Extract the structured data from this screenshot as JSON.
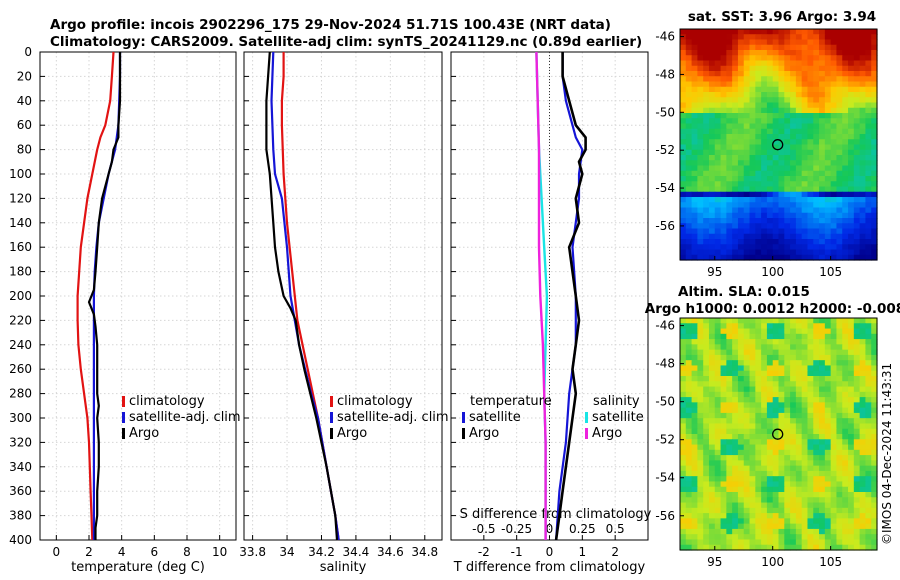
{
  "header": {
    "line1": "Argo profile: incois 2902296_175 29-Nov-2024 51.71S 100.43E (NRT data)",
    "line2": "Climatology: CARS2009. Satellite-adj clim: synTS_20241129.nc (0.89d earlier)"
  },
  "colors": {
    "climatology": "#e21313",
    "satellite": "#1515d6",
    "argo": "#000000",
    "sal_sat": "#19e5e5",
    "sal_argo": "#ee22dd"
  },
  "chart_data": [
    {
      "id": "temperature",
      "type": "line",
      "xlabel": "temperature (deg C)",
      "ylabel": "",
      "xlim": [
        -1,
        11
      ],
      "ylim": [
        400,
        0
      ],
      "xticks": [
        "0",
        "2",
        "4",
        "6",
        "8",
        "10"
      ],
      "yticks": [
        "0",
        "20",
        "40",
        "60",
        "80",
        "100",
        "120",
        "140",
        "160",
        "180",
        "200",
        "220",
        "240",
        "260",
        "280",
        "300",
        "320",
        "340",
        "360",
        "380",
        "400"
      ],
      "legend": [
        "climatology",
        "satellite-adj. clim",
        "Argo"
      ],
      "series": [
        {
          "name": "climatology",
          "color": "climatology",
          "depth": [
            0,
            20,
            40,
            60,
            70,
            80,
            100,
            120,
            140,
            160,
            180,
            200,
            210,
            220,
            240,
            260,
            280,
            300,
            320,
            340,
            360,
            380,
            400
          ],
          "values": [
            3.5,
            3.4,
            3.3,
            3.0,
            2.7,
            2.5,
            2.2,
            1.9,
            1.7,
            1.5,
            1.4,
            1.3,
            1.3,
            1.3,
            1.35,
            1.5,
            1.7,
            1.9,
            2.0,
            2.05,
            2.1,
            2.15,
            2.2
          ]
        },
        {
          "name": "satellite-adj. clim",
          "color": "satellite",
          "depth": [
            0,
            20,
            40,
            60,
            80,
            100,
            120,
            140,
            160,
            180,
            200,
            220,
            240,
            260,
            280,
            300,
            320,
            340,
            360,
            380,
            400
          ],
          "values": [
            3.9,
            3.9,
            3.85,
            3.8,
            3.6,
            3.2,
            2.9,
            2.6,
            2.45,
            2.35,
            2.3,
            2.3,
            2.3,
            2.3,
            2.3,
            2.3,
            2.3,
            2.3,
            2.3,
            2.3,
            2.3
          ]
        },
        {
          "name": "Argo",
          "color": "argo",
          "depth": [
            0,
            20,
            40,
            60,
            70,
            80,
            90,
            100,
            120,
            140,
            160,
            180,
            195,
            205,
            215,
            225,
            240,
            260,
            280,
            290,
            300,
            320,
            340,
            360,
            380,
            390,
            400
          ],
          "values": [
            3.9,
            3.9,
            3.9,
            3.8,
            3.8,
            3.5,
            3.4,
            3.2,
            2.8,
            2.6,
            2.5,
            2.4,
            2.3,
            2.0,
            2.3,
            2.4,
            2.5,
            2.5,
            2.5,
            2.6,
            2.5,
            2.6,
            2.6,
            2.5,
            2.5,
            2.4,
            2.4
          ]
        }
      ]
    },
    {
      "id": "salinity",
      "type": "line",
      "xlabel": "salinity",
      "ylabel": "",
      "xlim": [
        33.75,
        34.9
      ],
      "ylim": [
        400,
        0
      ],
      "xticks": [
        "33.8",
        "34",
        "34.2",
        "34.4",
        "34.6",
        "34.8"
      ],
      "legend": [
        "climatology",
        "satellite-adj. clim",
        "Argo"
      ],
      "series": [
        {
          "name": "climatology",
          "color": "climatology",
          "depth": [
            0,
            20,
            40,
            60,
            100,
            140,
            180,
            220,
            260,
            300,
            340,
            380,
            400
          ],
          "values": [
            33.98,
            33.98,
            33.97,
            33.97,
            33.98,
            34.0,
            34.03,
            34.06,
            34.12,
            34.18,
            34.23,
            34.28,
            34.3
          ]
        },
        {
          "name": "satellite-adj. clim",
          "color": "satellite",
          "depth": [
            0,
            40,
            80,
            100,
            120,
            160,
            200,
            240,
            280,
            300,
            340,
            380,
            400
          ],
          "values": [
            33.92,
            33.91,
            33.92,
            33.93,
            33.97,
            34.0,
            34.02,
            34.07,
            34.14,
            34.18,
            34.23,
            34.28,
            34.3
          ]
        },
        {
          "name": "Argo",
          "color": "argo",
          "depth": [
            0,
            40,
            60,
            80,
            100,
            140,
            160,
            180,
            200,
            210,
            220,
            240,
            260,
            300,
            340,
            380,
            400
          ],
          "values": [
            33.9,
            33.88,
            33.88,
            33.88,
            33.9,
            33.92,
            33.93,
            33.95,
            33.98,
            34.02,
            34.05,
            34.07,
            34.1,
            34.17,
            34.23,
            34.28,
            34.29
          ]
        }
      ]
    },
    {
      "id": "difference",
      "type": "line",
      "xlabel": "T difference from climatology",
      "top_xlabel": "S difference from climatology",
      "xlim": [
        -3,
        3
      ],
      "ylim": [
        400,
        0
      ],
      "xticks": [
        "-2",
        "-1",
        "0",
        "1",
        "2"
      ],
      "top_xticks": [
        "-0.5",
        "-0.25",
        "0",
        "0.25",
        "0.5"
      ],
      "legend_t": {
        "title": "temperature",
        "items": [
          "satellite",
          "Argo"
        ]
      },
      "legend_s": {
        "title": "salinity",
        "items": [
          "satellite",
          "Argo"
        ]
      },
      "series": [
        {
          "name": "T satellite",
          "color": "satellite",
          "depth": [
            0,
            20,
            40,
            60,
            70,
            80,
            100,
            120,
            160,
            200,
            240,
            280,
            320,
            360,
            400
          ],
          "values": [
            0.4,
            0.4,
            0.5,
            0.7,
            0.8,
            1.0,
            0.9,
            0.9,
            0.7,
            0.8,
            0.8,
            0.6,
            0.5,
            0.3,
            0.2
          ]
        },
        {
          "name": "T Argo",
          "color": "argo",
          "depth": [
            0,
            20,
            40,
            60,
            70,
            80,
            90,
            100,
            120,
            140,
            160,
            180,
            200,
            220,
            240,
            260,
            280,
            300,
            320,
            340,
            360,
            380,
            400
          ],
          "values": [
            0.4,
            0.4,
            0.6,
            0.8,
            1.1,
            1.1,
            0.9,
            1.0,
            0.8,
            0.9,
            0.6,
            0.7,
            0.8,
            0.9,
            0.8,
            0.7,
            0.8,
            0.7,
            0.6,
            0.5,
            0.4,
            0.3,
            0.2
          ]
        },
        {
          "name": "S satellite",
          "color": "sal_sat",
          "depth": [
            0,
            40,
            80,
            120,
            160,
            200,
            240,
            280,
            320,
            360,
            400
          ],
          "values": [
            -0.1,
            -0.09,
            -0.08,
            -0.06,
            -0.04,
            -0.02,
            -0.03,
            -0.04,
            -0.03,
            -0.03,
            -0.03
          ]
        },
        {
          "name": "S Argo",
          "color": "sal_argo",
          "depth": [
            0,
            40,
            80,
            120,
            160,
            200,
            240,
            280,
            320,
            360,
            400
          ],
          "values": [
            -0.1,
            -0.09,
            -0.08,
            -0.08,
            -0.08,
            -0.07,
            -0.05,
            -0.04,
            -0.03,
            -0.03,
            -0.03
          ]
        }
      ]
    },
    {
      "id": "sst_map",
      "type": "heatmap",
      "title": "sat. SST: 3.96 Argo: 3.94",
      "xticks": [
        "95",
        "100",
        "105"
      ],
      "yticks": [
        "-46",
        "-48",
        "-50",
        "-52",
        "-54",
        "-56"
      ],
      "xlim": [
        92,
        109
      ],
      "ylim": [
        -57.8,
        -45.6
      ],
      "marker": {
        "lon": 100.43,
        "lat": -51.71
      }
    },
    {
      "id": "sla_map",
      "type": "heatmap",
      "title": "Altim. SLA: 0.015",
      "subtitle": "Argo h1000: 0.0012 h2000: -0.008",
      "xticks": [
        "95",
        "100",
        "105"
      ],
      "yticks": [
        "-46",
        "-48",
        "-50",
        "-52",
        "-54",
        "-56"
      ],
      "xlim": [
        92,
        109
      ],
      "ylim": [
        -57.8,
        -45.6
      ],
      "marker": {
        "lon": 100.43,
        "lat": -51.71
      }
    }
  ],
  "watermark": "©IMOS 04-Dec-2024 11:43:31"
}
